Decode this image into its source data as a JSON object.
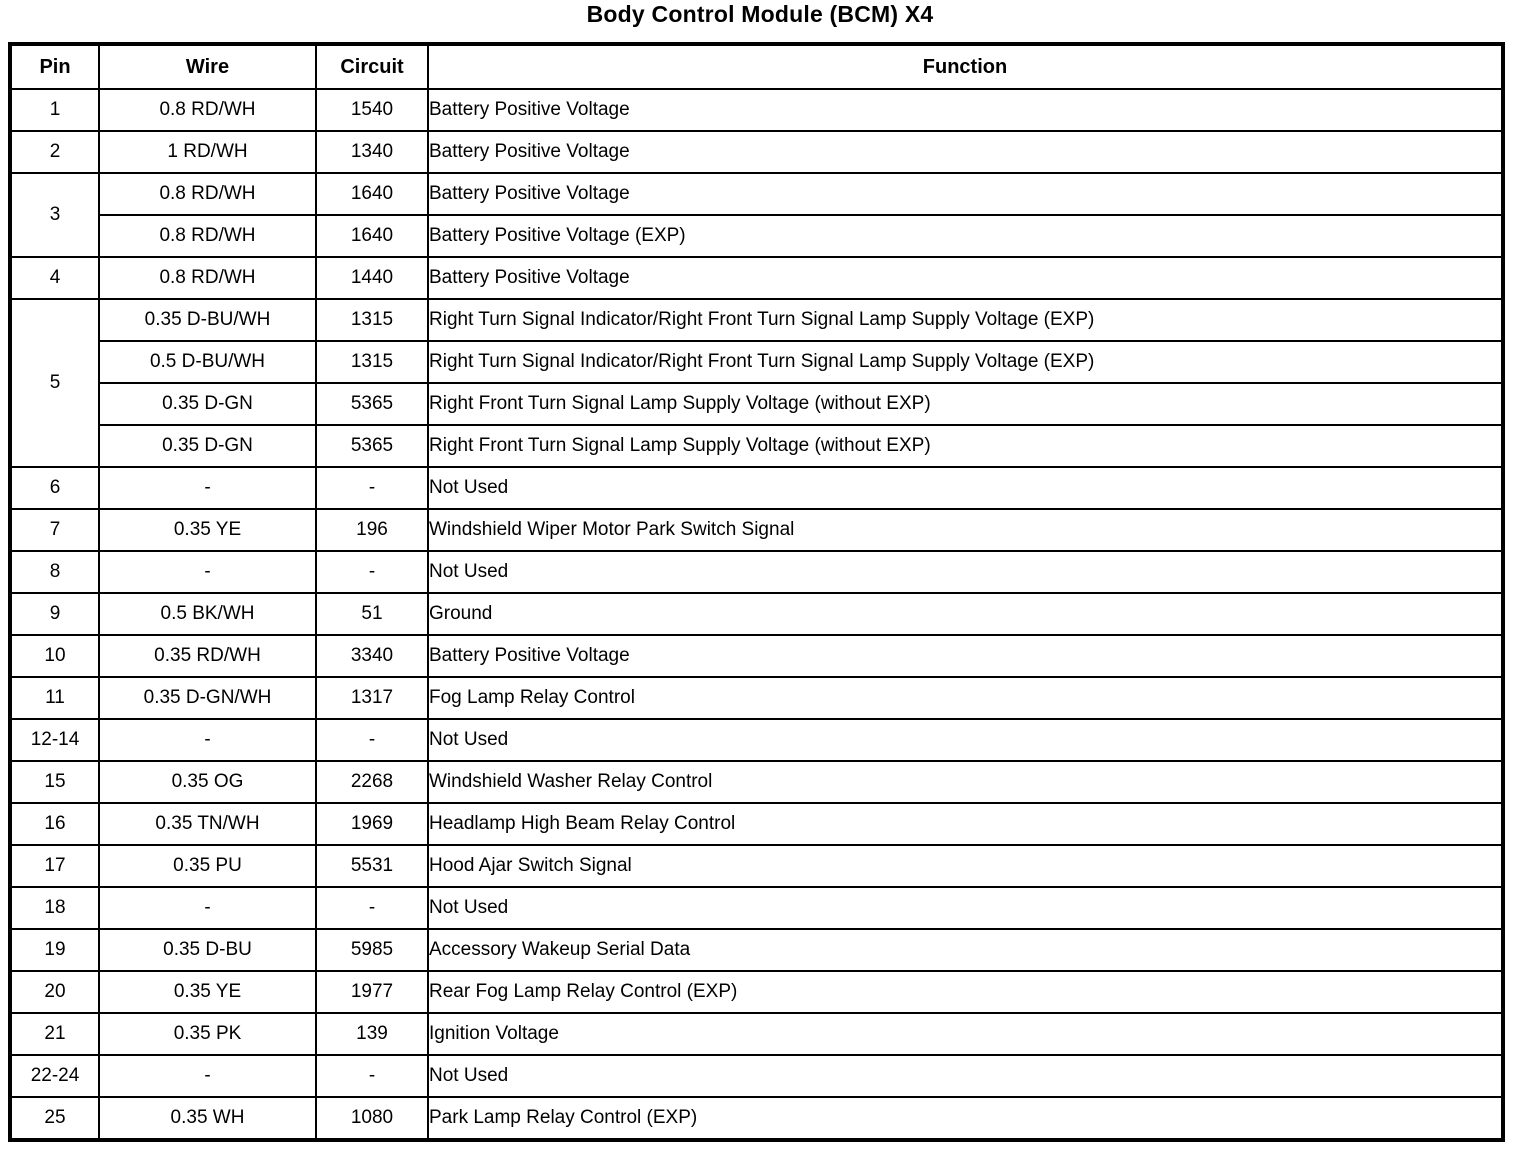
{
  "title": "Body Control Module (BCM) X4",
  "colors": {
    "text": "#000000",
    "background": "#ffffff",
    "border": "#000000"
  },
  "table": {
    "headers": [
      "Pin",
      "Wire",
      "Circuit",
      "Function"
    ],
    "groups": [
      {
        "pin": "1",
        "entries": [
          {
            "wire": "0.8 RD/WH",
            "circuit": "1540",
            "function": "Battery Positive Voltage"
          }
        ]
      },
      {
        "pin": "2",
        "entries": [
          {
            "wire": "1 RD/WH",
            "circuit": "1340",
            "function": "Battery Positive Voltage"
          }
        ]
      },
      {
        "pin": "3",
        "entries": [
          {
            "wire": "0.8 RD/WH",
            "circuit": "1640",
            "function": "Battery Positive Voltage"
          },
          {
            "wire": "0.8 RD/WH",
            "circuit": "1640",
            "function": "Battery Positive Voltage (EXP)"
          }
        ]
      },
      {
        "pin": "4",
        "entries": [
          {
            "wire": "0.8 RD/WH",
            "circuit": "1440",
            "function": "Battery Positive Voltage"
          }
        ]
      },
      {
        "pin": "5",
        "entries": [
          {
            "wire": "0.35 D-BU/WH",
            "circuit": "1315",
            "function": "Right Turn Signal Indicator/Right Front Turn Signal Lamp Supply Voltage (EXP)"
          },
          {
            "wire": "0.5 D-BU/WH",
            "circuit": "1315",
            "function": "Right Turn Signal Indicator/Right Front Turn Signal Lamp Supply Voltage (EXP)"
          },
          {
            "wire": "0.35 D-GN",
            "circuit": "5365",
            "function": "Right Front Turn Signal Lamp Supply Voltage (without EXP)"
          },
          {
            "wire": "0.35 D-GN",
            "circuit": "5365",
            "function": "Right Front Turn Signal Lamp Supply Voltage (without EXP)"
          }
        ]
      },
      {
        "pin": "6",
        "entries": [
          {
            "wire": "-",
            "circuit": "-",
            "function": "Not Used"
          }
        ]
      },
      {
        "pin": "7",
        "entries": [
          {
            "wire": "0.35 YE",
            "circuit": "196",
            "function": "Windshield Wiper Motor Park Switch Signal"
          }
        ]
      },
      {
        "pin": "8",
        "entries": [
          {
            "wire": "-",
            "circuit": "-",
            "function": "Not Used"
          }
        ]
      },
      {
        "pin": "9",
        "entries": [
          {
            "wire": "0.5 BK/WH",
            "circuit": "51",
            "function": "Ground"
          }
        ]
      },
      {
        "pin": "10",
        "entries": [
          {
            "wire": "0.35 RD/WH",
            "circuit": "3340",
            "function": "Battery Positive Voltage"
          }
        ]
      },
      {
        "pin": "11",
        "entries": [
          {
            "wire": "0.35 D-GN/WH",
            "circuit": "1317",
            "function": "Fog Lamp Relay Control"
          }
        ]
      },
      {
        "pin": "12-14",
        "entries": [
          {
            "wire": "-",
            "circuit": "-",
            "function": "Not Used"
          }
        ]
      },
      {
        "pin": "15",
        "entries": [
          {
            "wire": "0.35 OG",
            "circuit": "2268",
            "function": "Windshield Washer Relay Control"
          }
        ]
      },
      {
        "pin": "16",
        "entries": [
          {
            "wire": "0.35 TN/WH",
            "circuit": "1969",
            "function": "Headlamp High Beam Relay Control"
          }
        ]
      },
      {
        "pin": "17",
        "entries": [
          {
            "wire": "0.35 PU",
            "circuit": "5531",
            "function": "Hood Ajar Switch Signal"
          }
        ]
      },
      {
        "pin": "18",
        "entries": [
          {
            "wire": "-",
            "circuit": "-",
            "function": "Not Used"
          }
        ]
      },
      {
        "pin": "19",
        "entries": [
          {
            "wire": "0.35 D-BU",
            "circuit": "5985",
            "function": "Accessory Wakeup Serial Data"
          }
        ]
      },
      {
        "pin": "20",
        "entries": [
          {
            "wire": "0.35 YE",
            "circuit": "1977",
            "function": "Rear Fog Lamp Relay Control (EXP)"
          }
        ]
      },
      {
        "pin": "21",
        "entries": [
          {
            "wire": "0.35 PK",
            "circuit": "139",
            "function": "Ignition Voltage"
          }
        ]
      },
      {
        "pin": "22-24",
        "entries": [
          {
            "wire": "-",
            "circuit": "-",
            "function": "Not Used"
          }
        ]
      },
      {
        "pin": "25",
        "entries": [
          {
            "wire": "0.35 WH",
            "circuit": "1080",
            "function": "Park Lamp Relay Control (EXP)"
          }
        ]
      }
    ]
  }
}
